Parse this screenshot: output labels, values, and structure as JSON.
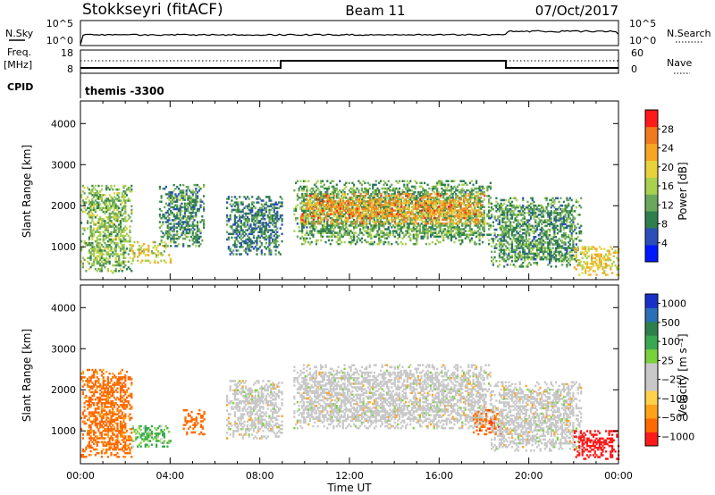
{
  "header": {
    "station": "Stokkseyri (fitACF)",
    "beam": "Beam 11",
    "date": "07/Oct/2017"
  },
  "status_panel": {
    "nsky_label": "N.Sky",
    "nsky_ticks": [
      "10^5",
      "10^0"
    ],
    "nsearch_label": "N.Search",
    "nsearch_ticks": [
      "10^5",
      "10^0"
    ],
    "freq_label": "Freq.",
    "freq_unit": "[MHz]",
    "freq_ticks": [
      "18",
      "8"
    ],
    "nave_label": "Nave",
    "nave_ticks": [
      "60",
      "0"
    ],
    "cpid_label": "CPID",
    "cpid_value": "themis -3300"
  },
  "colors": {
    "power_scale": [
      "#0018ff",
      "#2b4fb8",
      "#2f7f4c",
      "#6aa85c",
      "#a8d14f",
      "#e8d23c",
      "#f5a623",
      "#f07a1e",
      "#ff1a1a"
    ],
    "velocity_scale": [
      "#ff1a1a",
      "#ff6a00",
      "#ffa318",
      "#ffd24a",
      "#c8c8c8",
      "#c8c8c8",
      "#7ad23a",
      "#38a852",
      "#2f7f4c",
      "#2b6fb8",
      "#1830c8"
    ]
  },
  "chart_data": [
    {
      "type": "heatmap",
      "panel": "power",
      "ylabel": "Slant Range [km]",
      "yticks": [
        "1000",
        "2000",
        "3000",
        "4000"
      ],
      "ylim": [
        200,
        4550
      ],
      "xlim": [
        0,
        24
      ],
      "colorbar_label": "Power [dB]",
      "colorbar_ticks": [
        "4",
        "8",
        "12",
        "16",
        "20",
        "24",
        "28"
      ],
      "colorbar_range": [
        0,
        32
      ],
      "regions": [
        {
          "t0": 0.0,
          "t1": 2.3,
          "r0": 350,
          "r1": 2500,
          "level": 14
        },
        {
          "t0": 2.3,
          "t1": 4.0,
          "r0": 600,
          "r1": 1100,
          "level": 18
        },
        {
          "t0": 3.5,
          "t1": 5.5,
          "r0": 1000,
          "r1": 2500,
          "level": 10
        },
        {
          "t0": 6.5,
          "t1": 9.0,
          "r0": 800,
          "r1": 2200,
          "level": 9
        },
        {
          "t0": 9.5,
          "t1": 18.3,
          "r0": 1050,
          "r1": 2600,
          "level": 12
        },
        {
          "t0": 9.8,
          "t1": 18.0,
          "r0": 1550,
          "r1": 2300,
          "level": 24
        },
        {
          "t0": 18.3,
          "t1": 22.3,
          "r0": 500,
          "r1": 2200,
          "level": 11
        },
        {
          "t0": 22.0,
          "t1": 24.0,
          "r0": 300,
          "r1": 1000,
          "level": 20
        }
      ]
    },
    {
      "type": "heatmap",
      "panel": "velocity",
      "ylabel": "Slant Range [km]",
      "yticks": [
        "1000",
        "2000",
        "3000",
        "4000"
      ],
      "ylim": [
        200,
        4550
      ],
      "xlim": [
        0,
        24
      ],
      "xticks": [
        "00:00",
        "04:00",
        "08:00",
        "12:00",
        "16:00",
        "20:00",
        "00:00"
      ],
      "xlabel": "Time UT",
      "colorbar_label": "Velocity [m s⁻¹]",
      "colorbar_ticks": [
        "1000",
        "500",
        "100",
        "25",
        "−25",
        "−100",
        "−500",
        "−1000"
      ],
      "regions": [
        {
          "t0": 0.0,
          "t1": 2.3,
          "r0": 350,
          "r1": 2500,
          "velocity": -150
        },
        {
          "t0": 2.3,
          "t1": 4.0,
          "r0": 600,
          "r1": 1100,
          "velocity": 120
        },
        {
          "t0": 4.5,
          "t1": 5.5,
          "r0": 900,
          "r1": 1500,
          "velocity": -400
        },
        {
          "t0": 6.5,
          "t1": 9.0,
          "r0": 800,
          "r1": 2200,
          "velocity": 0
        },
        {
          "t0": 9.5,
          "t1": 18.3,
          "r0": 1050,
          "r1": 2600,
          "velocity": 0
        },
        {
          "t0": 17.5,
          "t1": 18.8,
          "r0": 900,
          "r1": 1500,
          "velocity": -450
        },
        {
          "t0": 18.3,
          "t1": 22.3,
          "r0": 500,
          "r1": 2200,
          "velocity": 0
        },
        {
          "t0": 22.0,
          "t1": 24.0,
          "r0": 300,
          "r1": 1000,
          "velocity": -600
        }
      ]
    }
  ]
}
